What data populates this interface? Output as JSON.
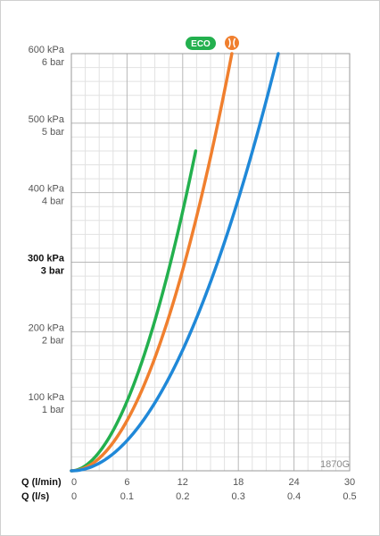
{
  "chart_data": {
    "type": "line",
    "y_labels": [
      {
        "kpa": "100 kPa",
        "bar": "1 bar",
        "value": 100,
        "bold": false
      },
      {
        "kpa": "200 kPa",
        "bar": "2 bar",
        "value": 200,
        "bold": false
      },
      {
        "kpa": "300 kPa",
        "bar": "3 bar",
        "value": 300,
        "bold": true
      },
      {
        "kpa": "400 kPa",
        "bar": "4 bar",
        "value": 400,
        "bold": false
      },
      {
        "kpa": "500 kPa",
        "bar": "5 bar",
        "value": 500,
        "bold": false
      },
      {
        "kpa": "600 kPa",
        "bar": "6 bar",
        "value": 600,
        "bold": false
      }
    ],
    "ylim": [
      0,
      600
    ],
    "xlim": [
      0,
      30
    ],
    "x_axis_label_lmin": "Q (l/min)",
    "x_axis_label_ls": "Q (l/s)",
    "x_ticks_lmin": [
      "0",
      "6",
      "12",
      "18",
      "24",
      "30"
    ],
    "x_ticks_ls": [
      "0",
      "0.1",
      "0.2",
      "0.3",
      "0.4",
      "0.5"
    ],
    "product_code": "1870G",
    "grid": true,
    "series": [
      {
        "color": "#23b04e",
        "badge": "ECO",
        "badge_kind": "text",
        "exponent": 1.9,
        "x": [
          0,
          1,
          2,
          3,
          4,
          5,
          6,
          7,
          8,
          9,
          10,
          11,
          12,
          12.5,
          13.4
        ],
        "y": [
          0,
          4,
          13,
          28,
          47,
          72,
          101,
          135,
          174,
          216,
          263,
          315,
          370,
          400,
          460
        ]
      },
      {
        "color": "#f07f2e",
        "badge": "restrictor",
        "badge_kind": "icon",
        "exponent": 2.0,
        "x": [
          0,
          2,
          4,
          6,
          8,
          10,
          12,
          14,
          16,
          17.3
        ],
        "y": [
          0,
          8,
          32,
          73,
          130,
          203,
          292,
          397,
          519,
          600
        ]
      },
      {
        "color": "#1f88d8",
        "badge": "",
        "badge_kind": "none",
        "exponent": 2.0,
        "x": [
          0,
          2,
          4,
          6,
          8,
          10,
          12,
          14,
          16,
          18,
          20,
          22.3
        ],
        "y": [
          0,
          5,
          19,
          43,
          77,
          120,
          173,
          236,
          308,
          390,
          481,
          600
        ]
      }
    ],
    "colors": {
      "grid_major": "#b8b8b8",
      "grid_minor": "#e2e2e2",
      "axis": "#9a9a9a"
    }
  }
}
